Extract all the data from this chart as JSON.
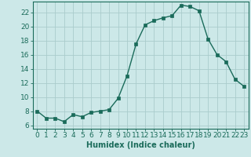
{
  "x": [
    0,
    1,
    2,
    3,
    4,
    5,
    6,
    7,
    8,
    9,
    10,
    11,
    12,
    13,
    14,
    15,
    16,
    17,
    18,
    19,
    20,
    21,
    22,
    23
  ],
  "y": [
    8.0,
    7.0,
    7.0,
    6.5,
    7.5,
    7.2,
    7.8,
    8.0,
    8.2,
    9.8,
    13.0,
    17.5,
    20.2,
    20.8,
    21.2,
    21.5,
    23.0,
    22.8,
    22.2,
    18.2,
    16.0,
    15.0,
    12.5,
    11.5
  ],
  "xlabel": "Humidex (Indice chaleur)",
  "xlim": [
    -0.5,
    23.5
  ],
  "ylim": [
    5.5,
    23.5
  ],
  "yticks": [
    6,
    8,
    10,
    12,
    14,
    16,
    18,
    20,
    22
  ],
  "xticks": [
    0,
    1,
    2,
    3,
    4,
    5,
    6,
    7,
    8,
    9,
    10,
    11,
    12,
    13,
    14,
    15,
    16,
    17,
    18,
    19,
    20,
    21,
    22,
    23
  ],
  "line_color": "#1a6b5a",
  "marker": "s",
  "marker_size": 2.5,
  "bg_color": "#cce8e8",
  "grid_color": "#aacccc",
  "xlabel_fontsize": 7,
  "tick_fontsize": 6.5
}
